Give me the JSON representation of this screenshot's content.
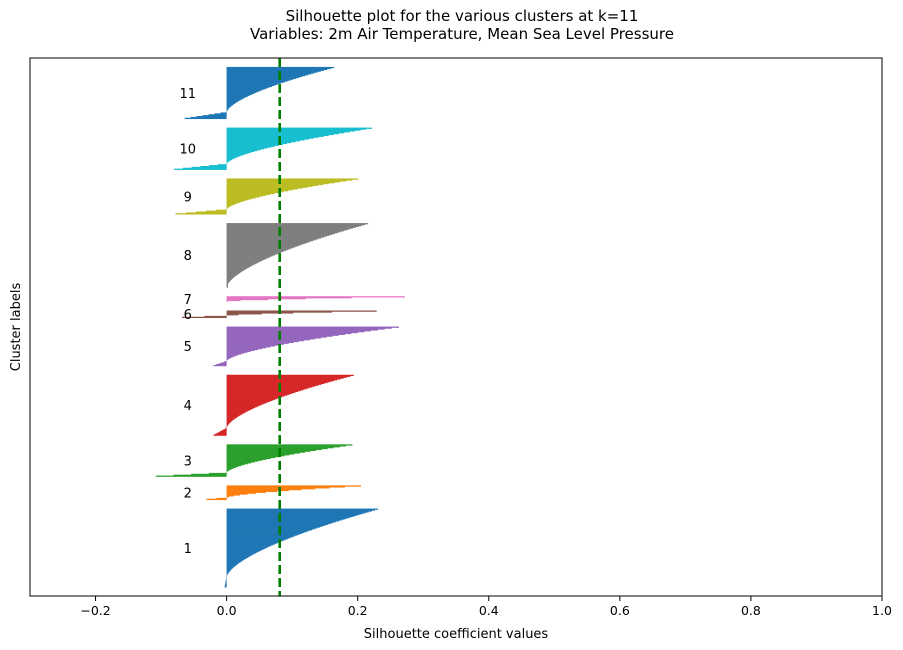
{
  "chart_data": {
    "type": "bar",
    "orientation": "horizontal",
    "title": "Silhouette plot for the various clusters at k=11",
    "subtitle": "Variables: 2m Air Temperature, Mean Sea Level Pressure",
    "xlabel": "Silhouette coefficient values",
    "ylabel": "Cluster labels",
    "xlim": [
      -0.3,
      1.0
    ],
    "xticks": [
      "−0.2",
      "0.0",
      "0.2",
      "0.4",
      "0.6",
      "0.8",
      "1.0"
    ],
    "xtick_values": [
      -0.2,
      0.0,
      0.2,
      0.4,
      0.6,
      0.8,
      1.0
    ],
    "yticks_shown": false,
    "grid": false,
    "average_silhouette": 0.081,
    "average_line_color": "#008000",
    "average_line_style": "dashed",
    "clusters": [
      {
        "label": "1",
        "size": 88,
        "max": 0.227,
        "min": -0.003,
        "color": "#1f77b4"
      },
      {
        "label": "2",
        "size": 16,
        "max": 0.201,
        "min": -0.031,
        "color": "#ff7f0e"
      },
      {
        "label": "3",
        "size": 36,
        "max": 0.188,
        "min": -0.108,
        "color": "#2ca02c"
      },
      {
        "label": "4",
        "size": 68,
        "max": 0.19,
        "min": -0.02,
        "color": "#d62728"
      },
      {
        "label": "5",
        "size": 44,
        "max": 0.259,
        "min": -0.02,
        "color": "#9467bd"
      },
      {
        "label": "6",
        "size": 8,
        "max": 0.225,
        "min": -0.068,
        "color": "#8c564b"
      },
      {
        "label": "7",
        "size": 6,
        "max": 0.268,
        "min": 0.0,
        "color": "#e377c2"
      },
      {
        "label": "8",
        "size": 72,
        "max": 0.212,
        "min": 0.0,
        "color": "#7f7f7f"
      },
      {
        "label": "9",
        "size": 40,
        "max": 0.197,
        "min": -0.078,
        "color": "#bcbd22"
      },
      {
        "label": "10",
        "size": 47,
        "max": 0.218,
        "min": -0.08,
        "color": "#17becf"
      },
      {
        "label": "11",
        "size": 58,
        "max": 0.16,
        "min": -0.064,
        "color": "#1f77b4"
      }
    ]
  }
}
